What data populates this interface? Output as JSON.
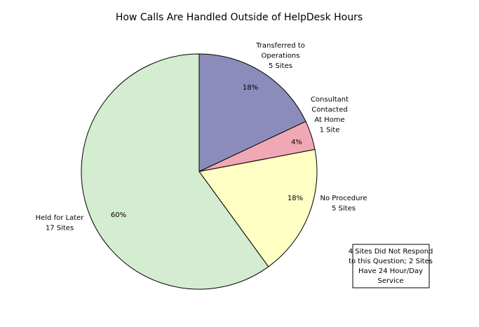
{
  "chart_data": {
    "type": "pie",
    "title": "How Calls Are Handled Outside of HelpDesk Hours",
    "categories": [
      [
        "Transferred to",
        "Operations"
      ],
      [
        "Consultant",
        "Contacted",
        "At Home"
      ],
      [
        "No Procedure"
      ],
      [
        "Held for Later"
      ]
    ],
    "values": [
      18,
      4,
      18,
      60
    ],
    "value_labels": [
      "18%",
      "4%",
      "18%",
      "60%"
    ],
    "site_counts": [
      5,
      1,
      5,
      17
    ],
    "site_count_labels": [
      "5 Sites",
      "1 Site",
      "5 Sites",
      "17 Sites"
    ],
    "colors": [
      "#8c8cbc",
      "#f0a8b4",
      "#ffffc4",
      "#d4ecd0"
    ],
    "note": [
      "4 Sites Did Not Respond",
      "to this Question; 2 Sites",
      "Have 24 Hour/Day",
      "Service"
    ]
  }
}
